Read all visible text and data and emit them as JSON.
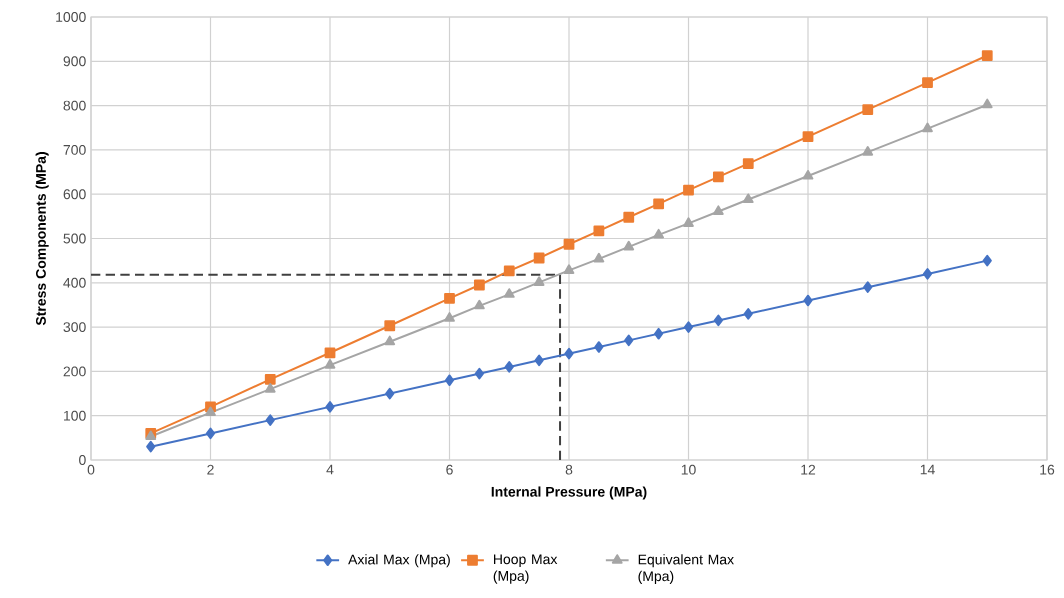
{
  "chart_data": {
    "type": "line",
    "xlabel": "Internal Pressure (MPa)",
    "ylabel": "Stress Components (MPa)",
    "x": [
      1,
      2,
      3,
      4,
      5,
      6,
      6.5,
      7,
      7.5,
      8,
      8.5,
      9,
      9.5,
      10,
      10.5,
      11,
      12,
      13,
      14,
      15
    ],
    "series": [
      {
        "name": "Axial Max (Mpa)",
        "color": "#4472c4",
        "marker": "diamond",
        "values": [
          30,
          60,
          90,
          120,
          150,
          180,
          195,
          210,
          225,
          240,
          255,
          270,
          285,
          300,
          315,
          330,
          360,
          390,
          420,
          450
        ]
      },
      {
        "name": "Hoop Max (Mpa)",
        "color": "#ed7d31",
        "marker": "square",
        "values": [
          60,
          120,
          182,
          242,
          303,
          365,
          395,
          427,
          456,
          487,
          517,
          548,
          578,
          609,
          639,
          669,
          730,
          791,
          852,
          913
        ]
      },
      {
        "name": "Equivalent Max (Mpa)",
        "color": "#a5a5a5",
        "marker": "triangle",
        "values": [
          53,
          107,
          160,
          214,
          267,
          320,
          348,
          374,
          401,
          428,
          454,
          481,
          508,
          534,
          561,
          588,
          641,
          695,
          748,
          802
        ]
      }
    ],
    "xlim": [
      0,
      16
    ],
    "xticks": [
      0,
      2,
      4,
      6,
      8,
      10,
      12,
      14,
      16
    ],
    "ylim": [
      0,
      1000
    ],
    "yticks": [
      0,
      100,
      200,
      300,
      400,
      500,
      600,
      700,
      800,
      900,
      1000
    ],
    "ref_lines": [
      {
        "axis": "y",
        "value": 418,
        "color": "#404040",
        "line_style": "dashed"
      },
      {
        "axis": "x",
        "value": 7.85,
        "color": "#404040",
        "line_style": "dashed"
      }
    ],
    "grid": true,
    "legend": "bottom",
    "line_style": "solid"
  }
}
